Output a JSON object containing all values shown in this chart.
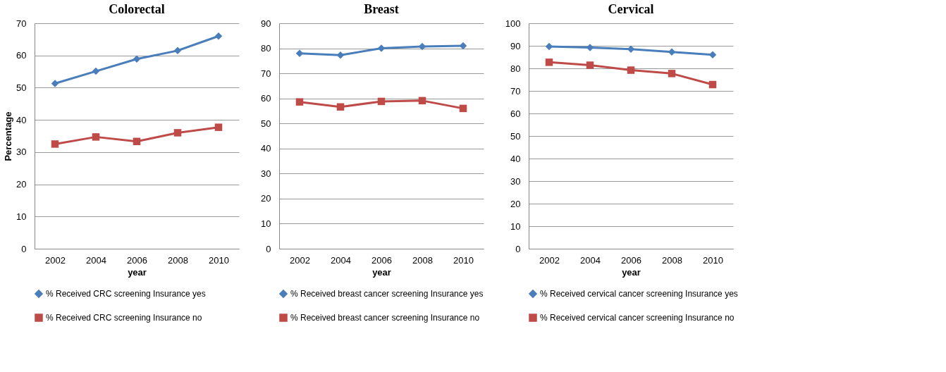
{
  "chart_data": [
    {
      "type": "line",
      "title": "Colorectal",
      "xlabel": "year",
      "ylabel": "Percentage",
      "categories": [
        "2002",
        "2004",
        "2006",
        "2008",
        "2010"
      ],
      "ylim": [
        0,
        70
      ],
      "yticks": [
        0,
        10,
        20,
        30,
        40,
        50,
        60,
        70
      ],
      "grid": "y",
      "legend": "bottom",
      "series": [
        {
          "name": "% Received CRC screening Insurance yes",
          "color": "#4a7ebb",
          "marker": "diamond",
          "values": [
            51.3,
            55.1,
            58.9,
            61.5,
            66
          ]
        },
        {
          "name": "% Received CRC screening Insurance no",
          "color": "#be4b48",
          "marker": "square",
          "values": [
            32.5,
            34.7,
            33.3,
            36,
            37.7
          ]
        }
      ]
    },
    {
      "type": "line",
      "title": "Breast",
      "xlabel": "year",
      "categories": [
        "2002",
        "2004",
        "2006",
        "2008",
        "2010"
      ],
      "ylim": [
        0,
        90
      ],
      "yticks": [
        0,
        10,
        20,
        30,
        40,
        50,
        60,
        70,
        80,
        90
      ],
      "grid": "y",
      "legend": "bottom",
      "series": [
        {
          "name": "% Received breast cancer screening Insurance yes",
          "color": "#4a7ebb",
          "marker": "diamond",
          "values": [
            78,
            77.3,
            80,
            80.7,
            81
          ]
        },
        {
          "name": "% Received breast cancer screening Insurance no",
          "color": "#be4b48",
          "marker": "square",
          "values": [
            58.6,
            56.6,
            58.8,
            59.1,
            56
          ]
        }
      ]
    },
    {
      "type": "line",
      "title": "Cervical",
      "xlabel": "year",
      "categories": [
        "2002",
        "2004",
        "2006",
        "2008",
        "2010"
      ],
      "ylim": [
        0,
        100
      ],
      "yticks": [
        0,
        10,
        20,
        30,
        40,
        50,
        60,
        70,
        80,
        90,
        100
      ],
      "grid": "y",
      "legend": "bottom",
      "series": [
        {
          "name": "% Received cervical cancer screening Insurance yes",
          "color": "#4a7ebb",
          "marker": "diamond",
          "values": [
            89.7,
            89.2,
            88.5,
            87.3,
            86
          ]
        },
        {
          "name": "% Received cervical cancer screening Insurance no",
          "color": "#be4b48",
          "marker": "square",
          "values": [
            82.7,
            81.4,
            79.2,
            77.7,
            72.8
          ]
        }
      ]
    }
  ]
}
